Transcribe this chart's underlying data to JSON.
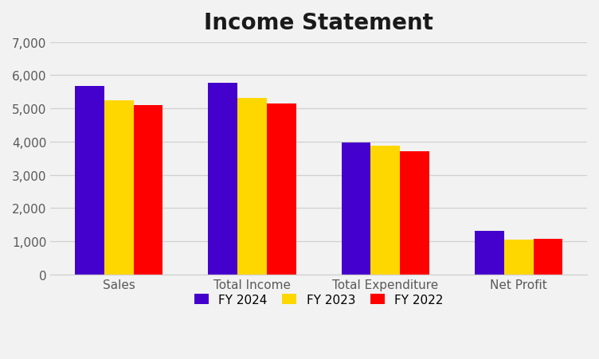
{
  "title": "Income Statement",
  "categories": [
    "Sales",
    "Total Income",
    "Total Expenditure",
    "Net Profit"
  ],
  "series": [
    {
      "label": "FY 2024",
      "color": "#4400CC",
      "values": [
        5680,
        5780,
        3970,
        1310
      ]
    },
    {
      "label": "FY 2023",
      "color": "#FFD700",
      "values": [
        5250,
        5320,
        3870,
        1050
      ]
    },
    {
      "label": "FY 2022",
      "color": "#FF0000",
      "values": [
        5100,
        5140,
        3700,
        1080
      ]
    }
  ],
  "ylim": [
    0,
    7000
  ],
  "yticks": [
    0,
    1000,
    2000,
    3000,
    4000,
    5000,
    6000,
    7000
  ],
  "background_color": "#f2f2f2",
  "grid_color": "#d0d0d0",
  "title_fontsize": 20,
  "tick_fontsize": 11,
  "legend_fontsize": 11,
  "bar_width": 0.22,
  "tick_color": "#595959",
  "label_color": "#595959"
}
